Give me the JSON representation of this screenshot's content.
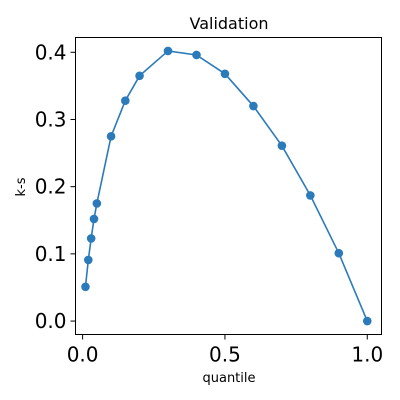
{
  "chart_data": {
    "type": "line",
    "title": "Validation",
    "xlabel": "quantile",
    "ylabel": "k-s",
    "xlim": [
      -0.025,
      1.05
    ],
    "ylim": [
      -0.02,
      0.422
    ],
    "xticks": [
      0.0,
      0.5,
      1.0
    ],
    "xtick_labels": [
      "0.0",
      "0.5",
      "1.0"
    ],
    "yticks": [
      0.0,
      0.1,
      0.2,
      0.3,
      0.4
    ],
    "ytick_labels": [
      "0.0",
      "0.1",
      "0.2",
      "0.3",
      "0.4"
    ],
    "grid": false,
    "color": "#2b7bba",
    "x": [
      0.01,
      0.02,
      0.03,
      0.04,
      0.05,
      0.1,
      0.15,
      0.2,
      0.3,
      0.4,
      0.5,
      0.6,
      0.7,
      0.8,
      0.9,
      1.0
    ],
    "y": [
      0.051,
      0.091,
      0.123,
      0.152,
      0.175,
      0.275,
      0.328,
      0.365,
      0.402,
      0.396,
      0.368,
      0.32,
      0.261,
      0.187,
      0.101,
      0.0
    ]
  }
}
